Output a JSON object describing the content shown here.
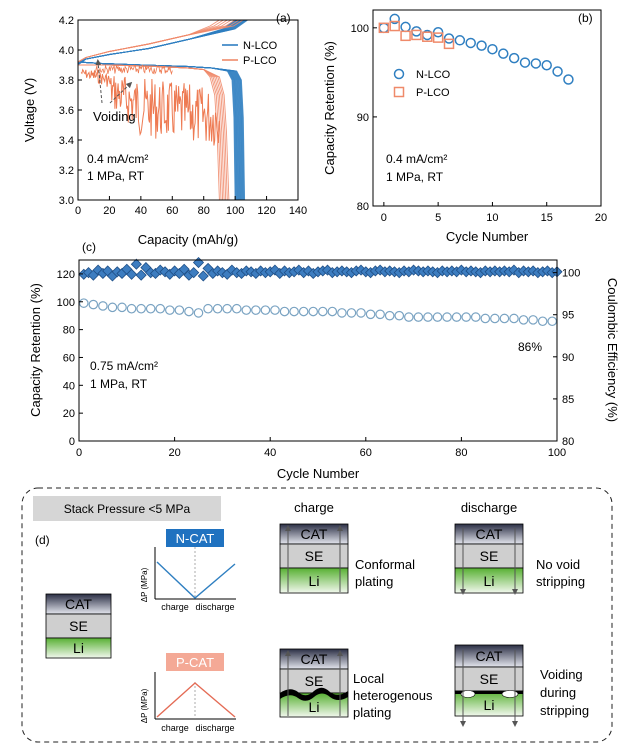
{
  "colors": {
    "n_blue": "#2f7fc1",
    "p_orange": "#ef8a6a",
    "diamond_fill": "#3d7dc0",
    "diamond_stroke": "#1f4f86",
    "ring_stroke": "#7aa3c2",
    "ncat_bg": "#1f72c0",
    "pcat_bg": "#f4a996",
    "stack_box_bg": "#d6d6d6",
    "cat_top": "#3a3f57",
    "se_gray": "#cfcfcf",
    "li_green": "#6abf45"
  },
  "panel_a": {
    "label": "(a)",
    "legend": [
      "N-LCO",
      "P-LCO"
    ],
    "annotation_voiding": "Voiding",
    "note_line1": "0.4 mA/cm²",
    "note_line2": "1 MPa, RT"
  },
  "panel_b": {
    "label": "(b)",
    "legend": [
      "N-LCO",
      "P-LCO"
    ],
    "note_line1": "0.4 mA/cm²",
    "note_line2": "1 MPa, RT"
  },
  "panel_c": {
    "label": "(c)",
    "note_line1": "0.75 mA/cm²",
    "note_line2": "1 MPa, RT",
    "final_label": "86%"
  },
  "panel_d": {
    "label": "(d)",
    "stack_pressure": "Stack Pressure <5 MPa",
    "charge_header": "charge",
    "discharge_header": "discharge",
    "ncat_label": "N-CAT",
    "pcat_label": "P-CAT",
    "dp_axis": "ΔP (MPa)",
    "axis_charge": "charge",
    "axis_discharge": "discharge",
    "layer_cat": "CAT",
    "layer_se": "SE",
    "layer_li": "Li",
    "desc_conformal_1": "Conformal",
    "desc_conformal_2": "plating",
    "desc_novoid_1": "No void",
    "desc_novoid_2": "stripping",
    "desc_local_1": "Local",
    "desc_local_2": "heterogenous",
    "desc_local_3": "plating",
    "desc_voiding_1": "Voiding",
    "desc_voiding_2": "during",
    "desc_voiding_3": "stripping"
  },
  "chart_data": [
    {
      "id": "a",
      "type": "line",
      "xlabel": "Capacity (mAh/g)",
      "ylabel": "Voltage (V)",
      "xlim": [
        0,
        140
      ],
      "ylim": [
        3.0,
        4.2
      ],
      "xticks": [
        0,
        20,
        40,
        60,
        80,
        100,
        120,
        140
      ],
      "yticks": [
        3.0,
        3.2,
        3.4,
        3.6,
        3.8,
        4.0,
        4.2
      ],
      "series": [
        {
          "name": "N-LCO",
          "description": "charge-discharge curves, ~17 cycles",
          "charge_end_capacity": [
            100,
            108
          ],
          "discharge_capacity": [
            100,
            106
          ]
        },
        {
          "name": "P-LCO",
          "description": "charge-discharge curves with voiding noise",
          "charge_end_capacity": [
            90,
            105
          ],
          "discharge_capacity": [
            90,
            96
          ]
        }
      ]
    },
    {
      "id": "b",
      "type": "scatter",
      "xlabel": "Cycle Number",
      "ylabel": "Capacity Retention (%)",
      "xlim": [
        -1,
        20
      ],
      "ylim": [
        80,
        102
      ],
      "xticks": [
        0,
        5,
        10,
        15,
        20
      ],
      "yticks": [
        80,
        90,
        100
      ],
      "series": [
        {
          "name": "N-LCO",
          "marker": "circle",
          "x": [
            0,
            1,
            2,
            3,
            4,
            5,
            6,
            7,
            8,
            9,
            10,
            11,
            12,
            13,
            14,
            15,
            16,
            17
          ],
          "y": [
            100,
            101,
            100.1,
            99.6,
            99.2,
            99.5,
            98.8,
            98.6,
            98.3,
            98,
            97.6,
            97.1,
            96.6,
            96.1,
            96,
            95.8,
            95.1,
            94.2
          ]
        },
        {
          "name": "P-LCO",
          "marker": "square",
          "x": [
            0,
            1,
            2,
            3,
            4,
            5,
            6
          ],
          "y": [
            100,
            100.2,
            99.1,
            99.2,
            99,
            98.9,
            98.2
          ]
        }
      ]
    },
    {
      "id": "c",
      "type": "scatter",
      "xlabel": "Cycle Number",
      "ylabel": "Capacity Retention (%)",
      "y2label": "Coulombic Efficiency (%)",
      "xlim": [
        0,
        100
      ],
      "ylim": [
        0,
        130
      ],
      "y2lim": [
        80,
        101.5
      ],
      "xticks": [
        0,
        20,
        40,
        60,
        80,
        100
      ],
      "yticks": [
        0,
        20,
        40,
        60,
        80,
        100,
        120
      ],
      "y2ticks": [
        80,
        85,
        90,
        95,
        100
      ],
      "series": [
        {
          "name": "Capacity Retention",
          "axis": "left",
          "marker": "open-circle",
          "x": [
            1,
            3,
            5,
            7,
            9,
            11,
            13,
            15,
            17,
            19,
            21,
            23,
            25,
            27,
            29,
            31,
            33,
            35,
            37,
            39,
            41,
            43,
            45,
            47,
            49,
            51,
            53,
            55,
            57,
            59,
            61,
            63,
            65,
            67,
            69,
            71,
            73,
            75,
            77,
            79,
            81,
            83,
            85,
            87,
            89,
            91,
            93,
            95,
            97,
            99
          ],
          "y": [
            99,
            98,
            97,
            96,
            96,
            95,
            95,
            95,
            95,
            94,
            94,
            93,
            92,
            95,
            95,
            95,
            95,
            94,
            94,
            94,
            94,
            93,
            93,
            93,
            93,
            93,
            93,
            92,
            92,
            92,
            91,
            91,
            90,
            90,
            89,
            89,
            89,
            89,
            89,
            89,
            89,
            89,
            88,
            88,
            88,
            88,
            87,
            87,
            86,
            86
          ]
        },
        {
          "name": "Coulombic Efficiency",
          "axis": "right",
          "marker": "diamond",
          "x": [
            1,
            2,
            3,
            4,
            5,
            6,
            7,
            8,
            9,
            10,
            11,
            12,
            13,
            14,
            15,
            16,
            17,
            18,
            19,
            20,
            21,
            22,
            23,
            24,
            25,
            26,
            27,
            28,
            29,
            30,
            31,
            32,
            33,
            34,
            35,
            36,
            37,
            38,
            39,
            40,
            41,
            42,
            43,
            44,
            45,
            46,
            47,
            48,
            49,
            50,
            51,
            52,
            53,
            54,
            55,
            56,
            57,
            58,
            59,
            60,
            61,
            62,
            63,
            64,
            65,
            66,
            67,
            68,
            69,
            70,
            71,
            72,
            73,
            74,
            75,
            76,
            77,
            78,
            79,
            80,
            81,
            82,
            83,
            84,
            85,
            86,
            87,
            88,
            89,
            90,
            91,
            92,
            93,
            94,
            95,
            96,
            97,
            98,
            99,
            100
          ],
          "y": [
            99.8,
            100,
            99.7,
            100.3,
            99.9,
            100.2,
            99.6,
            100.1,
            99.9,
            100.4,
            99.8,
            101,
            99.7,
            100.6,
            100,
            99.9,
            100.3,
            100.1,
            99.8,
            100.2,
            99.9,
            100.4,
            99.7,
            100,
            101.2,
            99.6,
            100.5,
            99.9,
            100.2,
            100,
            99.8,
            100.3,
            100,
            99.9,
            100.2,
            100.1,
            99.9,
            100.2,
            100,
            100.1,
            100.3,
            99.9,
            100.2,
            100,
            100.1,
            100.3,
            100,
            100.2,
            99.9,
            100.1,
            100.2,
            100.3,
            100,
            100.1,
            100.2,
            100.1,
            100,
            100.2,
            100.3,
            100.1,
            100,
            100.2,
            100.3,
            100.1,
            100.2,
            100.1,
            100,
            100.2,
            100.1,
            100.3,
            100.2,
            100.1,
            100.2,
            100.1,
            100,
            100.2,
            100.1,
            100.2,
            100.1,
            100.3,
            100.1,
            100.2,
            100.1,
            100,
            100.2,
            100.1,
            100.2,
            100.1,
            100.2,
            100.1,
            100.3,
            100,
            100.2,
            100.1,
            100.2,
            100,
            100.1,
            100.2,
            100,
            100.1
          ]
        }
      ]
    },
    {
      "id": "d-ncat",
      "type": "line",
      "title": "N-CAT",
      "ylabel": "ΔP (MPa)",
      "x": [
        "charge",
        "discharge"
      ],
      "description": "V shape: pressure decreases during charge, increases during discharge"
    },
    {
      "id": "d-pcat",
      "type": "line",
      "title": "P-CAT",
      "ylabel": "ΔP (MPa)",
      "x": [
        "charge",
        "discharge"
      ],
      "description": "Λ shape: pressure increases during charge, decreases during discharge"
    }
  ]
}
